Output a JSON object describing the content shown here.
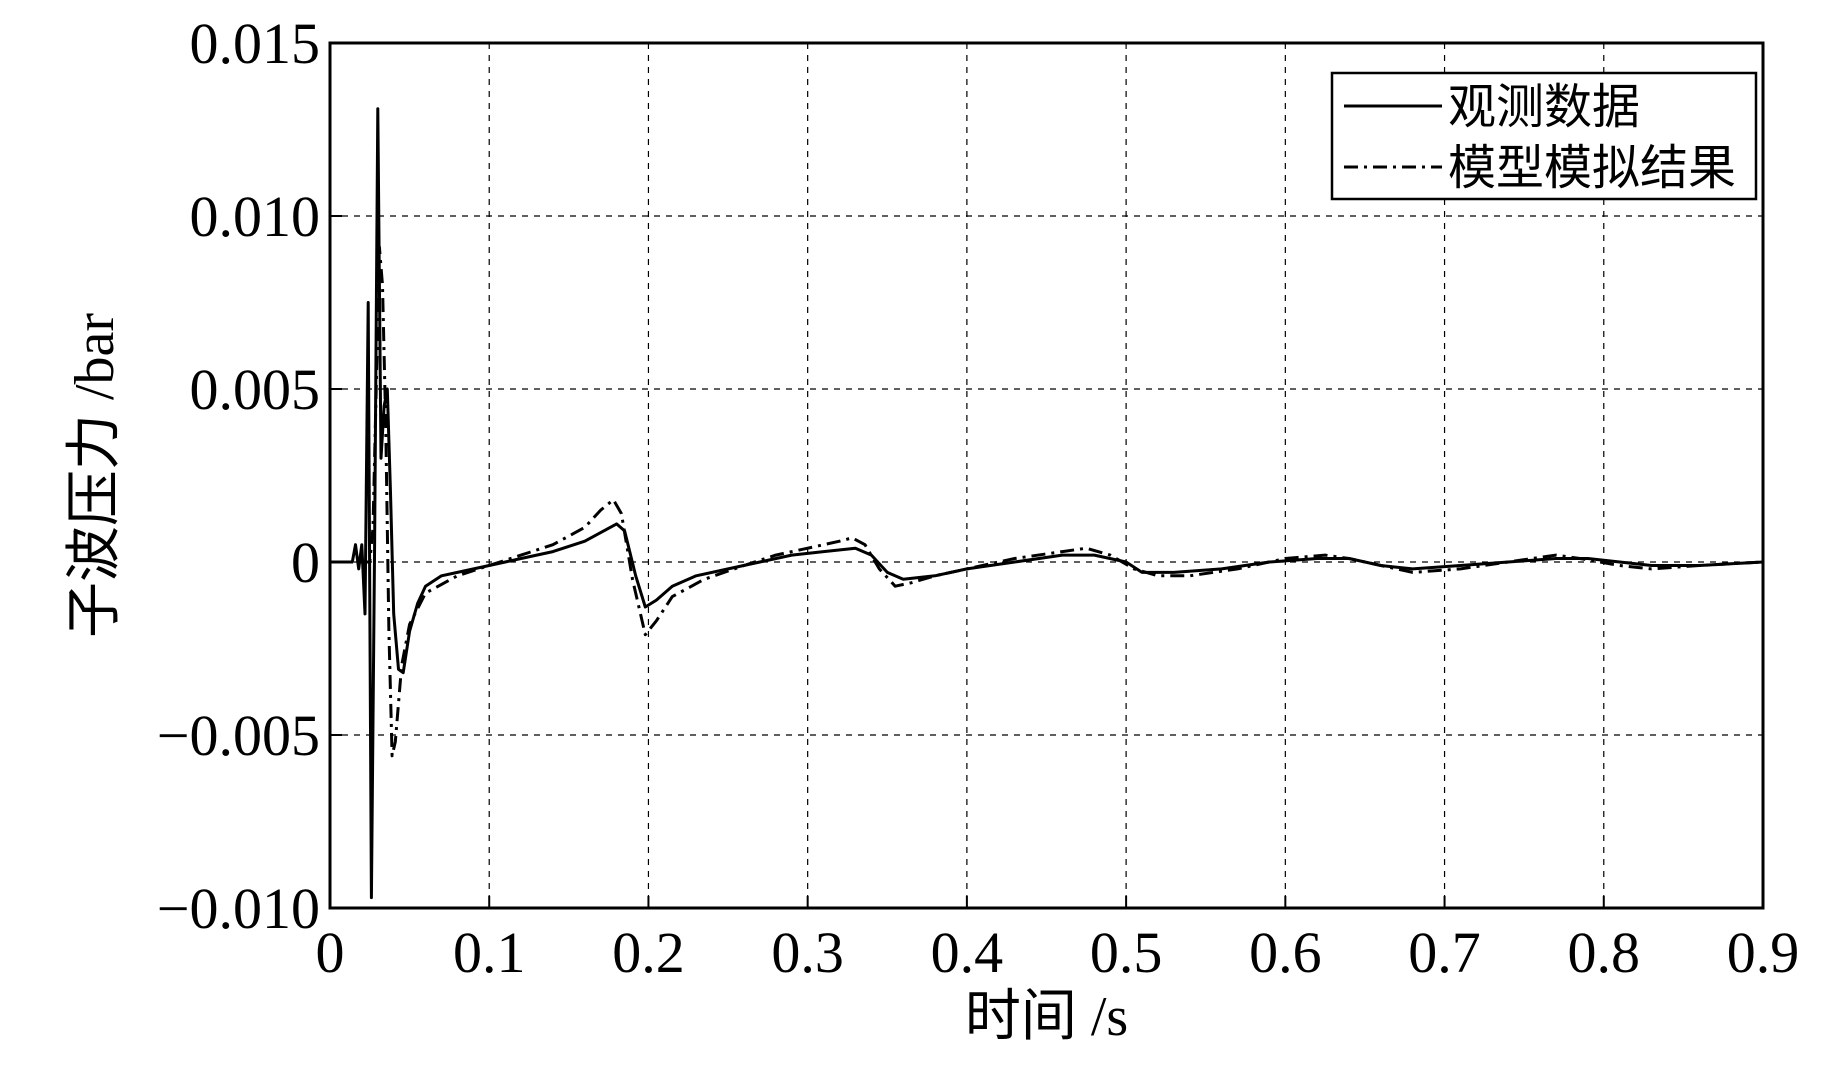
{
  "chart_data": {
    "type": "line",
    "xlabel": "时间 /s",
    "ylabel": "子波压力 /bar",
    "xlim": [
      0,
      0.9
    ],
    "ylim": [
      -0.01,
      0.015
    ],
    "x_ticks": [
      0,
      0.1,
      0.2,
      0.3,
      0.4,
      0.5,
      0.6,
      0.7,
      0.8,
      0.9
    ],
    "x_tick_labels": [
      "0",
      "0.1",
      "0.2",
      "0.3",
      "0.4",
      "0.5",
      "0.6",
      "0.7",
      "0.8",
      "0.9"
    ],
    "y_ticks": [
      -0.01,
      -0.005,
      0,
      0.005,
      0.01,
      0.015
    ],
    "y_tick_labels": [
      "−0.010",
      "−0.005",
      "0",
      "0.005",
      "0.010",
      "0.015"
    ],
    "grid": true,
    "legend_position": "top-right",
    "series": [
      {
        "name": "观测数据",
        "style": "solid",
        "color": "#000000",
        "points": [
          [
            0,
            0
          ],
          [
            0.014,
            0
          ],
          [
            0.016,
            0.0005
          ],
          [
            0.018,
            -0.0002
          ],
          [
            0.02,
            0.0005
          ],
          [
            0.022,
            -0.0015
          ],
          [
            0.024,
            0.0075
          ],
          [
            0.026,
            -0.0097
          ],
          [
            0.028,
            0.0005
          ],
          [
            0.03,
            0.0131
          ],
          [
            0.032,
            0.003
          ],
          [
            0.034,
            0.0045
          ],
          [
            0.036,
            0.005
          ],
          [
            0.038,
            0.002
          ],
          [
            0.04,
            -0.0015
          ],
          [
            0.043,
            -0.0031
          ],
          [
            0.046,
            -0.0032
          ],
          [
            0.05,
            -0.002
          ],
          [
            0.055,
            -0.0012
          ],
          [
            0.06,
            -0.0007
          ],
          [
            0.07,
            -0.0004
          ],
          [
            0.08,
            -0.0003
          ],
          [
            0.1,
            -0.0001
          ],
          [
            0.12,
            0.0001
          ],
          [
            0.14,
            0.0003
          ],
          [
            0.16,
            0.0006
          ],
          [
            0.18,
            0.0011
          ],
          [
            0.185,
            0.0009
          ],
          [
            0.192,
            -0.0004
          ],
          [
            0.198,
            -0.0013
          ],
          [
            0.205,
            -0.0011
          ],
          [
            0.215,
            -0.0007
          ],
          [
            0.23,
            -0.0004
          ],
          [
            0.25,
            -0.0002
          ],
          [
            0.27,
            0
          ],
          [
            0.29,
            0.0002
          ],
          [
            0.31,
            0.0003
          ],
          [
            0.33,
            0.0004
          ],
          [
            0.34,
            0.0002
          ],
          [
            0.35,
            -0.0003
          ],
          [
            0.36,
            -0.0005
          ],
          [
            0.38,
            -0.0004
          ],
          [
            0.4,
            -0.0002
          ],
          [
            0.43,
            0
          ],
          [
            0.46,
            0.0002
          ],
          [
            0.48,
            0.0002
          ],
          [
            0.5,
            0
          ],
          [
            0.51,
            -0.0003
          ],
          [
            0.53,
            -0.0003
          ],
          [
            0.56,
            -0.0002
          ],
          [
            0.59,
            0
          ],
          [
            0.62,
            0.0001
          ],
          [
            0.64,
            0.0001
          ],
          [
            0.66,
            -0.0001
          ],
          [
            0.68,
            -0.0002
          ],
          [
            0.71,
            -0.0001
          ],
          [
            0.74,
            0
          ],
          [
            0.77,
            0.0001
          ],
          [
            0.79,
            0.0001
          ],
          [
            0.81,
            0
          ],
          [
            0.83,
            -0.0001
          ],
          [
            0.86,
            -0.0001
          ],
          [
            0.9,
            0
          ]
        ]
      },
      {
        "name": "模型模拟结果",
        "style": "dashdot",
        "color": "#000000",
        "points": [
          [
            0,
            0
          ],
          [
            0.025,
            0
          ],
          [
            0.027,
            0.001
          ],
          [
            0.029,
            0.005
          ],
          [
            0.031,
            0.0091
          ],
          [
            0.033,
            0.008
          ],
          [
            0.035,
            0.004
          ],
          [
            0.037,
            -0.002
          ],
          [
            0.039,
            -0.0056
          ],
          [
            0.041,
            -0.0052
          ],
          [
            0.045,
            -0.003
          ],
          [
            0.05,
            -0.0018
          ],
          [
            0.06,
            -0.0009
          ],
          [
            0.08,
            -0.0004
          ],
          [
            0.1,
            -0.0001
          ],
          [
            0.12,
            0.0002
          ],
          [
            0.14,
            0.0005
          ],
          [
            0.16,
            0.001
          ],
          [
            0.17,
            0.0015
          ],
          [
            0.178,
            0.0018
          ],
          [
            0.183,
            0.0014
          ],
          [
            0.19,
            -0.0005
          ],
          [
            0.198,
            -0.0021
          ],
          [
            0.205,
            -0.0017
          ],
          [
            0.215,
            -0.001
          ],
          [
            0.235,
            -0.0005
          ],
          [
            0.26,
            -0.0001
          ],
          [
            0.28,
            0.0002
          ],
          [
            0.3,
            0.0004
          ],
          [
            0.32,
            0.0006
          ],
          [
            0.328,
            0.0007
          ],
          [
            0.336,
            0.0005
          ],
          [
            0.345,
            -0.0002
          ],
          [
            0.355,
            -0.0007
          ],
          [
            0.365,
            -0.0006
          ],
          [
            0.38,
            -0.0004
          ],
          [
            0.4,
            -0.0002
          ],
          [
            0.43,
            0.0001
          ],
          [
            0.46,
            0.0003
          ],
          [
            0.475,
            0.0004
          ],
          [
            0.49,
            0.0002
          ],
          [
            0.505,
            -0.0002
          ],
          [
            0.52,
            -0.0004
          ],
          [
            0.54,
            -0.0004
          ],
          [
            0.57,
            -0.0002
          ],
          [
            0.6,
            0.0001
          ],
          [
            0.625,
            0.0002
          ],
          [
            0.64,
            0.0001
          ],
          [
            0.66,
            -0.0001
          ],
          [
            0.68,
            -0.0003
          ],
          [
            0.71,
            -0.0002
          ],
          [
            0.74,
            0
          ],
          [
            0.77,
            0.0002
          ],
          [
            0.785,
            0.0001
          ],
          [
            0.81,
            -0.0001
          ],
          [
            0.83,
            -0.0002
          ],
          [
            0.86,
            -0.0001
          ],
          [
            0.9,
            0
          ]
        ]
      }
    ]
  }
}
